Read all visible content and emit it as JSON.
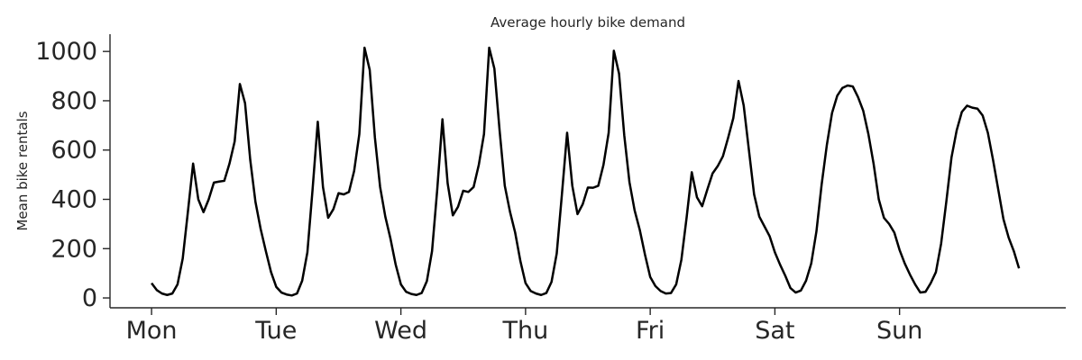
{
  "chart_data": {
    "type": "line",
    "title": "Average hourly bike demand",
    "xlabel": "",
    "ylabel": "Mean bike rentals",
    "ylim": [
      -40,
      1070
    ],
    "xlim": [
      -8,
      176
    ],
    "grid": false,
    "legend": "none",
    "yticks": [
      0,
      200,
      400,
      600,
      800,
      1000
    ],
    "xticks": [
      {
        "value": 0,
        "label": "Mon"
      },
      {
        "value": 24,
        "label": "Tue"
      },
      {
        "value": 48,
        "label": "Wed"
      },
      {
        "value": 72,
        "label": "Thu"
      },
      {
        "value": 96,
        "label": "Fri"
      },
      {
        "value": 120,
        "label": "Sat"
      },
      {
        "value": 144,
        "label": "Sun"
      }
    ],
    "series": [
      {
        "color": "#000000",
        "x_start": 0,
        "x_step": 1,
        "values": [
          60,
          32,
          18,
          12,
          18,
          55,
          160,
          350,
          545,
          400,
          348,
          400,
          468,
          472,
          475,
          545,
          635,
          868,
          790,
          560,
          390,
          280,
          190,
          105,
          45,
          22,
          14,
          10,
          18,
          70,
          185,
          440,
          715,
          450,
          325,
          360,
          425,
          420,
          430,
          515,
          665,
          1015,
          925,
          650,
          450,
          330,
          240,
          135,
          55,
          25,
          16,
          12,
          20,
          68,
          190,
          440,
          725,
          465,
          335,
          370,
          435,
          430,
          450,
          540,
          665,
          1015,
          930,
          680,
          455,
          350,
          265,
          150,
          60,
          28,
          18,
          12,
          20,
          65,
          180,
          420,
          670,
          455,
          340,
          380,
          448,
          447,
          455,
          540,
          670,
          1003,
          910,
          660,
          470,
          355,
          275,
          175,
          85,
          48,
          28,
          18,
          20,
          55,
          155,
          325,
          510,
          408,
          372,
          440,
          505,
          535,
          575,
          650,
          730,
          880,
          780,
          600,
          420,
          330,
          290,
          250,
          185,
          135,
          90,
          40,
          22,
          30,
          70,
          140,
          270,
          460,
          620,
          750,
          820,
          852,
          862,
          858,
          815,
          760,
          665,
          545,
          400,
          325,
          300,
          265,
          195,
          140,
          95,
          55,
          22,
          25,
          60,
          105,
          220,
          390,
          570,
          680,
          755,
          780,
          772,
          768,
          740,
          670,
          560,
          440,
          320,
          245,
          190,
          120
        ]
      }
    ]
  }
}
